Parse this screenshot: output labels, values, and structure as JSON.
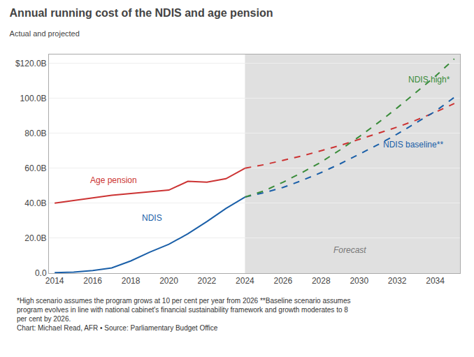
{
  "chart_data": {
    "type": "line",
    "title": "Annual running cost of the NDIS and age pension",
    "subtitle": "Actual and projected",
    "xlim": [
      2013.7,
      2035.3
    ],
    "xticks": [
      2014,
      2016,
      2018,
      2020,
      2022,
      2024,
      2026,
      2028,
      2030,
      2032,
      2034
    ],
    "ylim": [
      0,
      125
    ],
    "yticks": [
      {
        "value": 0,
        "label": "0.0"
      },
      {
        "value": 20,
        "label": "20.0B"
      },
      {
        "value": 40,
        "label": "40.0B"
      },
      {
        "value": 60,
        "label": "60.0B"
      },
      {
        "value": 80,
        "label": "80.0B"
      },
      {
        "value": 100,
        "label": "100.0B"
      },
      {
        "value": 120,
        "label": "$120.0B"
      }
    ],
    "grid": "y",
    "series": [
      {
        "color": "#cc3333",
        "line_style": "solid",
        "x": [
          2014,
          2015,
          2016,
          2017,
          2018,
          2019,
          2020,
          2021,
          2022,
          2023,
          2024
        ],
        "values": [
          40.0,
          41.5,
          43.0,
          44.5,
          45.5,
          46.5,
          47.5,
          52.5,
          52.0,
          54.0,
          60.0
        ]
      },
      {
        "color": "#cc3333",
        "line_style": "dashed",
        "x": [
          2024,
          2025,
          2026,
          2027,
          2028,
          2029,
          2030,
          2031,
          2032,
          2033,
          2034,
          2035
        ],
        "values": [
          60.0,
          62.0,
          64.5,
          67.0,
          70.0,
          73.0,
          76.5,
          80.0,
          83.5,
          87.5,
          92.0,
          97.0
        ]
      },
      {
        "color": "#1a5fa8",
        "line_style": "solid",
        "x": [
          2014,
          2015,
          2016,
          2017,
          2018,
          2019,
          2020,
          2021,
          2022,
          2023,
          2024
        ],
        "values": [
          0.3,
          0.6,
          1.5,
          3.0,
          7.0,
          12.0,
          16.5,
          22.5,
          29.5,
          37.0,
          43.5
        ]
      },
      {
        "color": "#1a5fa8",
        "line_style": "dashed",
        "x": [
          2024,
          2025,
          2026,
          2027,
          2028,
          2029,
          2030,
          2031,
          2032,
          2033,
          2034,
          2035
        ],
        "values": [
          43.5,
          46.0,
          49.0,
          53.0,
          57.5,
          62.5,
          68.0,
          73.5,
          79.5,
          86.0,
          92.5,
          100.5
        ]
      },
      {
        "color": "#3a8c3a",
        "line_style": "dashed",
        "x": [
          2024,
          2025,
          2026,
          2027,
          2028,
          2029,
          2030,
          2031,
          2032,
          2033,
          2034,
          2035
        ],
        "values": [
          43.5,
          47.0,
          52.0,
          57.5,
          63.5,
          70.5,
          78.0,
          86.0,
          94.5,
          103.5,
          112.5,
          122.5
        ]
      }
    ],
    "annotations": [
      {
        "text": "Age pension",
        "x": 2015.8,
        "y": 49.5,
        "color": "#cc3333"
      },
      {
        "text": "NDIS",
        "x": 2018.5,
        "y": 28.0,
        "color": "#1a5fa8"
      },
      {
        "text": "NDIS high*",
        "x": 2032.5,
        "y": 107.0,
        "color": "#3a8c3a"
      },
      {
        "text": "NDIS baseline**",
        "x": 2031.2,
        "y": 70.0,
        "color": "#1a5fa8"
      }
    ],
    "shaded_span": {
      "x": [
        2024,
        2035.3
      ],
      "color": "#e0e0e0",
      "label": "Forecast",
      "label_x": 2029.5,
      "label_y": 9.5
    },
    "footnotes": [
      "*High scenario assumes the program grows at 10 per cent per year from 2026 **Baseline scenario assumes",
      "program evolves in line with national cabinet's financial sustainability framework and growth moderates to 8",
      "per cent by 2026."
    ],
    "source": "Chart: Michael Read, AFR • Source: Parliamentary Budget Office"
  }
}
